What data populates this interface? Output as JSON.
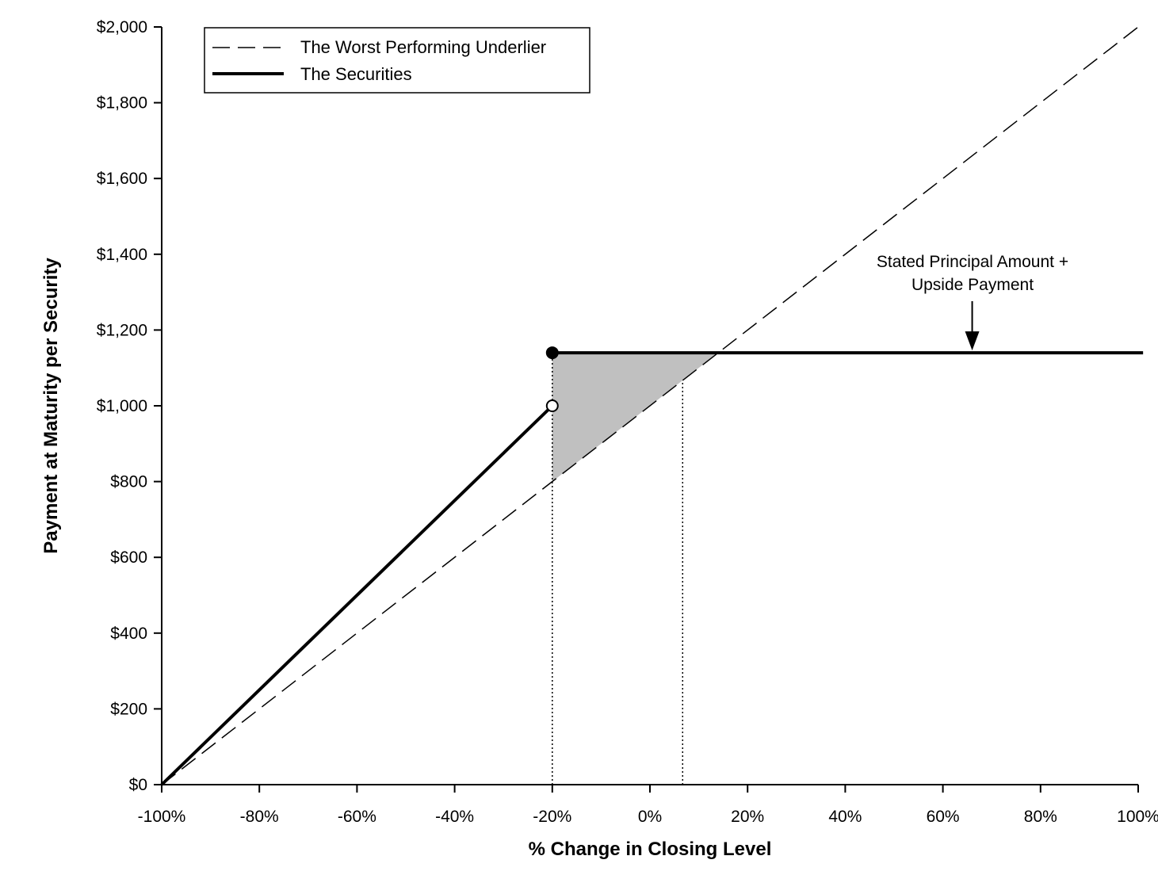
{
  "chart_data": {
    "type": "line",
    "title": "",
    "xlabel": "% Change in Closing Level",
    "ylabel": "Payment at Maturity per Security",
    "xlim": [
      -100,
      100
    ],
    "ylim": [
      0,
      2000
    ],
    "x_ticks": [
      -100,
      -80,
      -60,
      -40,
      -20,
      0,
      20,
      40,
      60,
      80,
      100
    ],
    "x_tick_labels": [
      "-100%",
      "-80%",
      "-60%",
      "-40%",
      "-20%",
      "0%",
      "20%",
      "40%",
      "60%",
      "80%",
      "100%"
    ],
    "y_ticks": [
      0,
      200,
      400,
      600,
      800,
      1000,
      1200,
      1400,
      1600,
      1800,
      2000
    ],
    "y_tick_labels": [
      "$0",
      "$200",
      "$400",
      "$600",
      "$800",
      "$1,000",
      "$1,200",
      "$1,400",
      "$1,600",
      "$1,800",
      "$2,000"
    ],
    "grid": false,
    "legend_position": "top-left",
    "series": [
      {
        "name": "The Worst Performing Underlier",
        "style": "dashed",
        "x": [
          -100,
          100
        ],
        "y": [
          0,
          2000
        ]
      },
      {
        "name": "The Securities",
        "style": "solid-thick",
        "segments": [
          {
            "x": [
              -100,
              -20
            ],
            "y": [
              0,
              1000
            ]
          },
          {
            "x": [
              -20,
              101
            ],
            "y": [
              1140,
              1140
            ]
          }
        ]
      }
    ],
    "markers": [
      {
        "x": -20,
        "y": 1140,
        "fill": "filled"
      },
      {
        "x": -20,
        "y": 1000,
        "fill": "open"
      }
    ],
    "shaded_region": {
      "color": "#c0c0c0",
      "points": [
        [
          -20,
          800
        ],
        [
          -20,
          1140
        ],
        [
          14,
          1140
        ]
      ]
    },
    "reference_lines": [
      {
        "x": -20,
        "from_y": 0,
        "to_y": 1140,
        "style": "dotted"
      },
      {
        "x": 6.7,
        "from_y": 0,
        "to_y": 1067,
        "style": "dotted"
      }
    ],
    "annotation": {
      "text_lines": [
        "Stated Principal Amount +",
        "Upside Payment"
      ],
      "arrow_x": 66,
      "arrow_target_y": 1140
    },
    "colors": {
      "line": "#000000",
      "shade": "#c0c0c0",
      "background": "#ffffff"
    }
  }
}
